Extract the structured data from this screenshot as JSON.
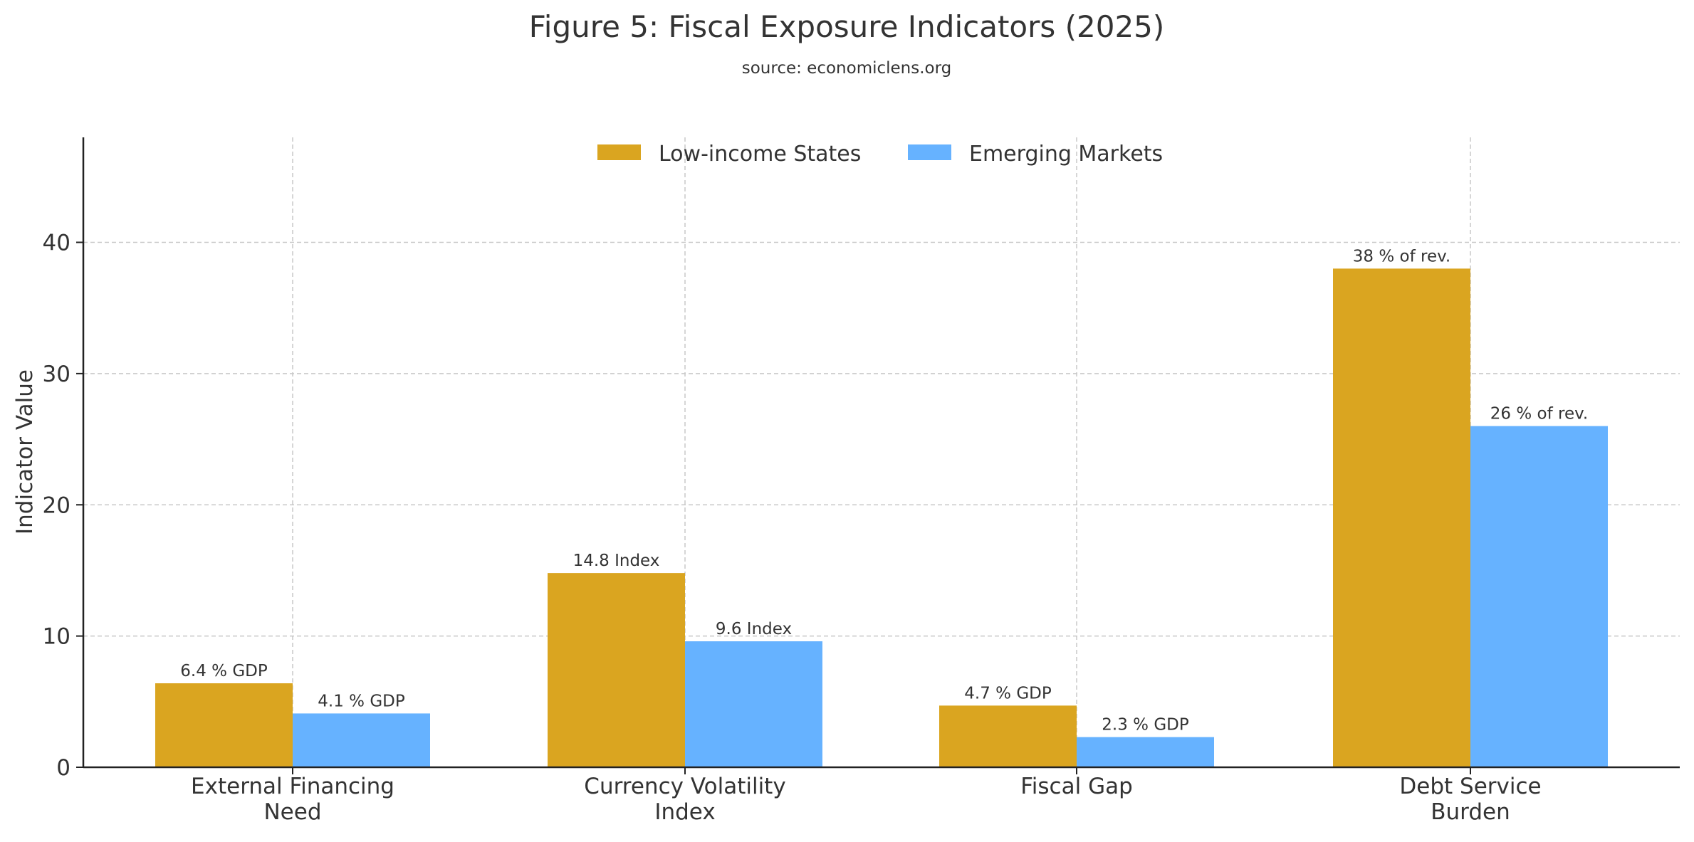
{
  "chart_data": {
    "type": "bar",
    "title": "Figure 5: Fiscal Exposure Indicators (2025)",
    "subtitle": "source: economiclens.org",
    "xlabel": "",
    "ylabel": "Indicator Value",
    "ylim": [
      0,
      48
    ],
    "yticks": [
      0,
      10,
      20,
      30,
      40
    ],
    "grid": true,
    "legend_position": "top-center",
    "categories": [
      [
        "External Financing",
        "Need"
      ],
      [
        "Currency Volatility",
        "Index"
      ],
      [
        "Fiscal Gap"
      ],
      [
        "Debt Service",
        "Burden"
      ]
    ],
    "series": [
      {
        "name": "Low-income States",
        "color": "#DAA520",
        "values": [
          6.4,
          14.8,
          4.7,
          38
        ],
        "labels": [
          "6.4 % GDP",
          "14.8 Index",
          "4.7 % GDP",
          "38 % of rev."
        ]
      },
      {
        "name": "Emerging Markets",
        "color": "#66B2FF",
        "values": [
          4.1,
          9.6,
          2.3,
          26
        ],
        "labels": [
          "4.1 % GDP",
          "9.6 Index",
          "2.3 % GDP",
          "26 % of rev."
        ]
      }
    ]
  }
}
